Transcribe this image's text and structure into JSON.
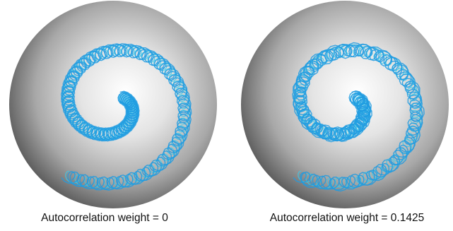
{
  "figure": {
    "panels": [
      {
        "caption": "Autocorrelation weight = 0",
        "sphere_colors": {
          "highlight": "#ffffff",
          "mid": "#c8c8c8",
          "shadow": "#4d4d4d"
        },
        "curve_colors": {
          "outer": "#1e9be0",
          "inner": "#3cc8e8"
        }
      },
      {
        "caption": "Autocorrelation weight = 0.1425",
        "sphere_colors": {
          "highlight": "#ffffff",
          "mid": "#c8c8c8",
          "shadow": "#4d4d4d"
        },
        "curve_colors": {
          "outer": "#1e9be0",
          "inner": "#3cc8e8"
        }
      }
    ]
  }
}
